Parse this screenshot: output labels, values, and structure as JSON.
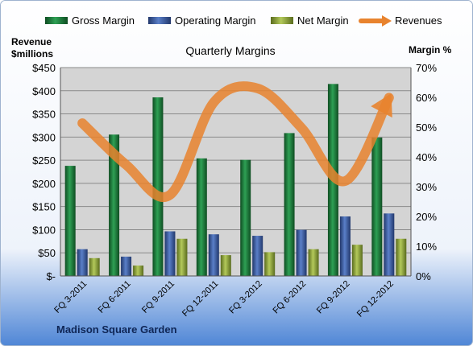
{
  "chart_data": {
    "type": "bar",
    "title": "Quarterly Margins",
    "subtitle": "Madison Square Garden",
    "y_left_label_line1": "Revenue",
    "y_left_label_line2": "$millions",
    "y_right_label": "Margin %",
    "categories": [
      "FQ 3-2011",
      "FQ 6-2011",
      "FQ 9-2011",
      "FQ 12-2011",
      "FQ 3-2012",
      "FQ 6-2012",
      "FQ 9-2012",
      "FQ 12-2012"
    ],
    "y_left_ticks": [
      "$-",
      "$50",
      "$100",
      "$150",
      "$200",
      "$250",
      "$300",
      "$350",
      "$400",
      "$450"
    ],
    "y_right_ticks": [
      "0%",
      "10%",
      "20%",
      "30%",
      "40%",
      "50%",
      "60%",
      "70%"
    ],
    "ylim_left": [
      0,
      450
    ],
    "ylim_right": [
      0,
      70
    ],
    "legend_position": "top",
    "grid": true,
    "series": [
      {
        "name": "Gross Margin",
        "axis": "right",
        "kind": "bar",
        "color": "#1f7a3a",
        "values": [
          37,
          47.5,
          60,
          39.5,
          39,
          48,
          64.5,
          46.5
        ]
      },
      {
        "name": "Operating Margin",
        "axis": "right",
        "kind": "bar",
        "color": "#3a5da8",
        "values": [
          9,
          6.5,
          15,
          14,
          13.5,
          15.5,
          20,
          21
        ]
      },
      {
        "name": "Net Margin",
        "axis": "right",
        "kind": "bar",
        "color": "#8ea53a",
        "values": [
          6,
          3.5,
          12.5,
          7,
          8,
          9,
          10.5,
          12.5
        ]
      },
      {
        "name": "Revenues",
        "axis": "left",
        "kind": "line",
        "color": "#e8832e",
        "values": [
          330,
          240,
          175,
          375,
          405,
          320,
          205,
          385
        ]
      }
    ]
  }
}
